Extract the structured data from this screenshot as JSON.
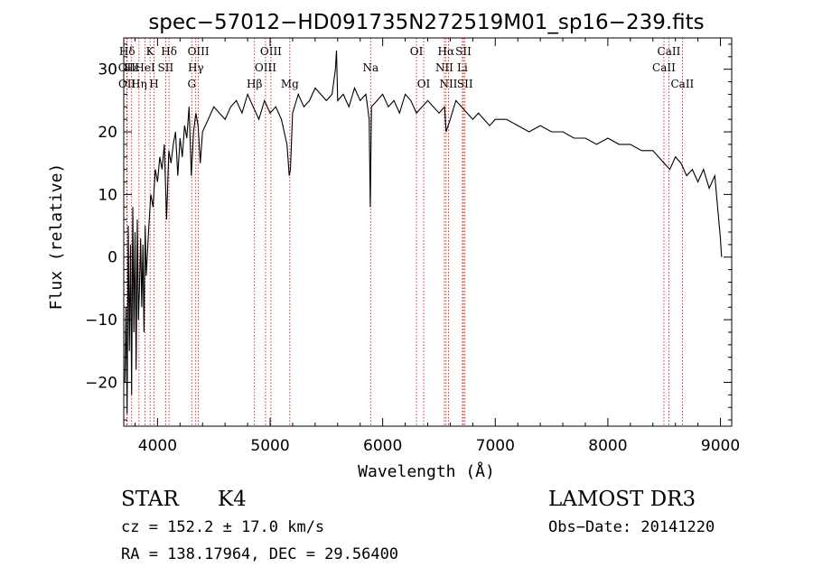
{
  "chart_data": {
    "type": "line",
    "title": "spec−57012−HD091735N272519M01_sp16−239.fits",
    "xlabel": "Wavelength (Å)",
    "ylabel": "Flux (relative)",
    "xlim": [
      3700,
      9100
    ],
    "ylim": [
      -27,
      35
    ],
    "xticks": [
      4000,
      5000,
      6000,
      7000,
      8000,
      9000
    ],
    "xtick_labels": [
      "4000",
      "5000",
      "6000",
      "7000",
      "8000",
      "9000"
    ],
    "yticks": [
      -20,
      -10,
      0,
      10,
      20,
      30
    ],
    "ytick_labels": [
      "−20",
      "−10",
      "0",
      "10",
      "20",
      "30"
    ],
    "series": [
      {
        "name": "flux",
        "x": [
          3710,
          3720,
          3730,
          3740,
          3750,
          3760,
          3770,
          3780,
          3790,
          3800,
          3810,
          3820,
          3830,
          3840,
          3850,
          3860,
          3870,
          3880,
          3890,
          3900,
          3920,
          3940,
          3960,
          3980,
          4000,
          4020,
          4040,
          4060,
          4080,
          4100,
          4120,
          4140,
          4160,
          4180,
          4200,
          4220,
          4240,
          4260,
          4280,
          4300,
          4320,
          4340,
          4360,
          4380,
          4400,
          4450,
          4500,
          4550,
          4600,
          4650,
          4700,
          4750,
          4800,
          4850,
          4900,
          4950,
          5000,
          5050,
          5100,
          5150,
          5170,
          5180,
          5200,
          5250,
          5300,
          5350,
          5400,
          5450,
          5500,
          5550,
          5580,
          5590,
          5600,
          5650,
          5700,
          5750,
          5800,
          5850,
          5880,
          5890,
          5900,
          5950,
          6000,
          6050,
          6100,
          6150,
          6200,
          6250,
          6300,
          6350,
          6400,
          6450,
          6500,
          6550,
          6563,
          6600,
          6650,
          6700,
          6750,
          6800,
          6850,
          6900,
          6950,
          7000,
          7100,
          7200,
          7300,
          7400,
          7500,
          7600,
          7700,
          7800,
          7900,
          8000,
          8100,
          8200,
          8300,
          8400,
          8450,
          8500,
          8550,
          8600,
          8650,
          8700,
          8750,
          8800,
          8850,
          8900,
          8950,
          9000,
          9010
        ],
        "y": [
          -20,
          -8,
          -25,
          5,
          -15,
          2,
          -22,
          8,
          -12,
          4,
          -18,
          6,
          -10,
          -5,
          3,
          -8,
          2,
          -12,
          5,
          -3,
          4,
          10,
          8,
          14,
          12,
          16,
          14,
          18,
          6,
          17,
          15,
          18,
          20,
          13,
          19,
          16,
          21,
          19,
          24,
          13,
          20,
          23,
          21,
          15,
          20,
          22,
          24,
          23,
          22,
          24,
          25,
          23,
          26,
          24,
          22,
          25,
          23,
          24,
          22,
          18,
          13,
          14,
          23,
          26,
          24,
          25,
          27,
          26,
          25,
          26,
          30,
          33,
          25,
          26,
          24,
          27,
          25,
          26,
          22,
          8,
          24,
          25,
          26,
          24,
          25,
          23,
          26,
          25,
          23,
          24,
          25,
          24,
          23,
          24,
          20,
          22,
          25,
          24,
          23,
          22,
          23,
          22,
          21,
          22,
          22,
          21,
          20,
          21,
          20,
          20,
          19,
          19,
          18,
          19,
          18,
          18,
          17,
          17,
          16,
          15,
          14,
          16,
          15,
          13,
          14,
          12,
          14,
          11,
          13,
          3,
          0
        ]
      }
    ],
    "lines": [
      {
        "label": "Hδ",
        "x": 3730,
        "row": 0
      },
      {
        "label": "OII",
        "x": 3727,
        "row": 1
      },
      {
        "label": "OII",
        "x": 3729,
        "row": 2
      },
      {
        "label": "Hε",
        "x": 3770,
        "row": 1
      },
      {
        "label": "Hη",
        "x": 3835,
        "row": 2
      },
      {
        "label": "K",
        "x": 3934,
        "row": 0
      },
      {
        "label": "HeI",
        "x": 3889,
        "row": 1
      },
      {
        "label": "H",
        "x": 3969,
        "row": 2
      },
      {
        "label": "SII",
        "x": 4072,
        "row": 1
      },
      {
        "label": "Hδ",
        "x": 4102,
        "row": 0
      },
      {
        "label": "OIII",
        "x": 4363,
        "row": 0
      },
      {
        "label": "Hγ",
        "x": 4340,
        "row": 1
      },
      {
        "label": "G",
        "x": 4304,
        "row": 2
      },
      {
        "label": "Hβ",
        "x": 4861,
        "row": 2
      },
      {
        "label": "OIII",
        "x": 5007,
        "row": 0
      },
      {
        "label": "OIII",
        "x": 4959,
        "row": 1
      },
      {
        "label": "Mg",
        "x": 5175,
        "row": 2
      },
      {
        "label": "Na",
        "x": 5893,
        "row": 1
      },
      {
        "label": "OI",
        "x": 6300,
        "row": 0
      },
      {
        "label": "OI",
        "x": 6364,
        "row": 2
      },
      {
        "label": "Hα",
        "x": 6563,
        "row": 0
      },
      {
        "label": "NII",
        "x": 6548,
        "row": 1
      },
      {
        "label": "NII",
        "x": 6584,
        "row": 2
      },
      {
        "label": "SII",
        "x": 6717,
        "row": 0
      },
      {
        "label": "Li",
        "x": 6708,
        "row": 1
      },
      {
        "label": "SII",
        "x": 6731,
        "row": 2
      },
      {
        "label": "CaII",
        "x": 8542,
        "row": 0
      },
      {
        "label": "CaII",
        "x": 8498,
        "row": 1
      },
      {
        "label": "CaII",
        "x": 8662,
        "row": 2
      }
    ]
  },
  "info": {
    "class": "STAR",
    "subclass": "K4",
    "survey": "LAMOST DR3",
    "cz": "cz = 152.2 ± 17.0 km/s",
    "obs_date": "Obs−Date: 20141220",
    "radec": "RA = 138.17964, DEC =  29.56400"
  },
  "colors": {
    "line_marker": "#cc0000",
    "spectrum": "#000000"
  }
}
